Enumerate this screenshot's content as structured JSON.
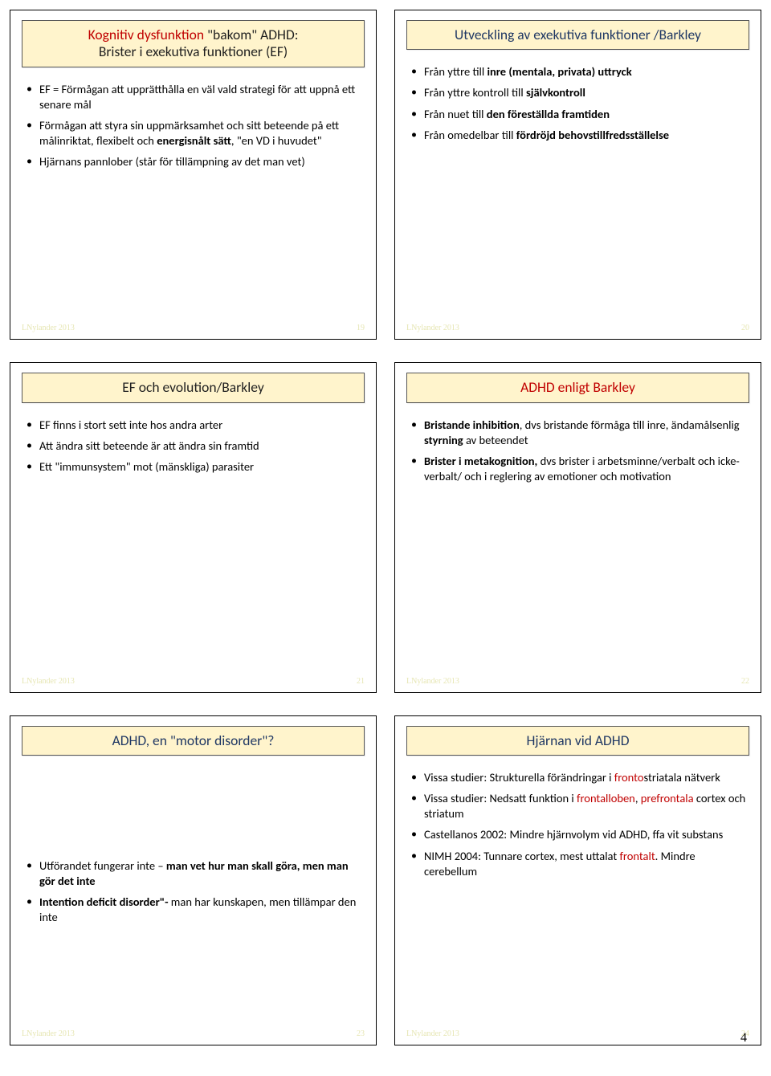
{
  "page_number": "4",
  "footer_author": "LNylander 2013",
  "slides": [
    {
      "title_html": "<span class='red-word'>Kognitiv dysfunktion</span> \"bakom\" ADHD:\nBrister i exekutiva funktioner (EF)",
      "title_color": "dark",
      "slide_num": "19",
      "bullets": [
        "EF = Förmågan att upprätthålla en väl vald strategi för att uppnå ett senare mål",
        "Förmågan att styra sin uppmärksamhet och sitt beteende på ett målinriktat, flexibelt och <b>energisnålt sätt</b>, \"en VD i huvudet\"",
        "Hjärnans pannlober (står för tillämpning av det man vet)"
      ],
      "vcenter": false
    },
    {
      "title_html": "Utveckling av exekutiva funktioner /Barkley",
      "title_color": "blue",
      "slide_num": "20",
      "bullets": [
        "Från yttre till <b>inre (mentala, privata) uttryck</b>",
        "Från yttre kontroll till <b>självkontroll</b>",
        "Från nuet till <b>den föreställda framtiden</b>",
        "Från omedelbar till <b>fördröjd behovstillfredsställelse</b>"
      ],
      "vcenter": false
    },
    {
      "title_html": "EF och evolution/Barkley",
      "title_color": "dark",
      "slide_num": "21",
      "bullets": [
        "EF finns i stort sett inte hos andra arter",
        "Att ändra sitt beteende är att ändra sin framtid",
        "Ett \"immunsystem\" mot (mänskliga) parasiter"
      ],
      "vcenter": false
    },
    {
      "title_html": "ADHD enligt Barkley",
      "title_color": "red",
      "slide_num": "22",
      "bullets": [
        "<b>Bristande inhibition</b>, dvs bristande förmåga till inre, ändamålsenlig <b>styrning</b> av beteendet",
        "<b>Brister i metakognition,</b> dvs brister i arbetsminne/verbalt och icke-verbalt/ och i reglering av emotioner och motivation"
      ],
      "vcenter": false
    },
    {
      "title_html": "ADHD, en \"motor disorder\"?",
      "title_color": "blue",
      "slide_num": "23",
      "bullets": [
        "Utförandet fungerar inte – <b>man vet hur man skall göra, men man gör det inte</b>",
        "<b>Intention deficit disorder\"-</b> man har kunskapen, men tillämpar den inte"
      ],
      "vcenter": true
    },
    {
      "title_html": "Hjärnan vid ADHD",
      "title_color": "blue",
      "slide_num": "24",
      "bullets": [
        "Vissa studier: Strukturella förändringar i <span class='red-word'>fronto</span>striatala nätverk",
        "Vissa studier: Nedsatt funktion i <span class='red-word'>frontalloben</span>, <span class='red-word'>prefrontala</span> cortex och striatum",
        "Castellanos 2002: Mindre hjärnvolym vid ADHD, ffa vit substans",
        "NIMH 2004: Tunnare cortex, mest uttalat <span class='red-word'>frontalt</span>. Mindre cerebellum"
      ],
      "vcenter": false
    }
  ]
}
